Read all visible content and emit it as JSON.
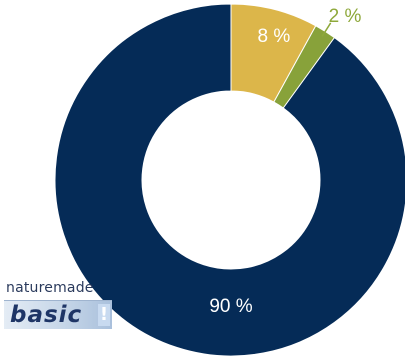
{
  "chart_data": {
    "type": "pie",
    "donut": true,
    "start_angle_deg": 0,
    "direction": "clockwise",
    "categories": [
      "",
      "",
      ""
    ],
    "values": [
      8,
      2,
      90
    ],
    "labels": [
      "8 %",
      "2 %",
      "90 %"
    ],
    "colors": [
      "#dcb64a",
      "#88a23a",
      "#052b57"
    ],
    "label_colors": [
      "#ffffff",
      "#8ea83a",
      "#ffffff"
    ],
    "title": "",
    "legend": "none"
  },
  "logo": {
    "top_text": "naturemade",
    "bottom_text": "basic",
    "mark": "!"
  }
}
